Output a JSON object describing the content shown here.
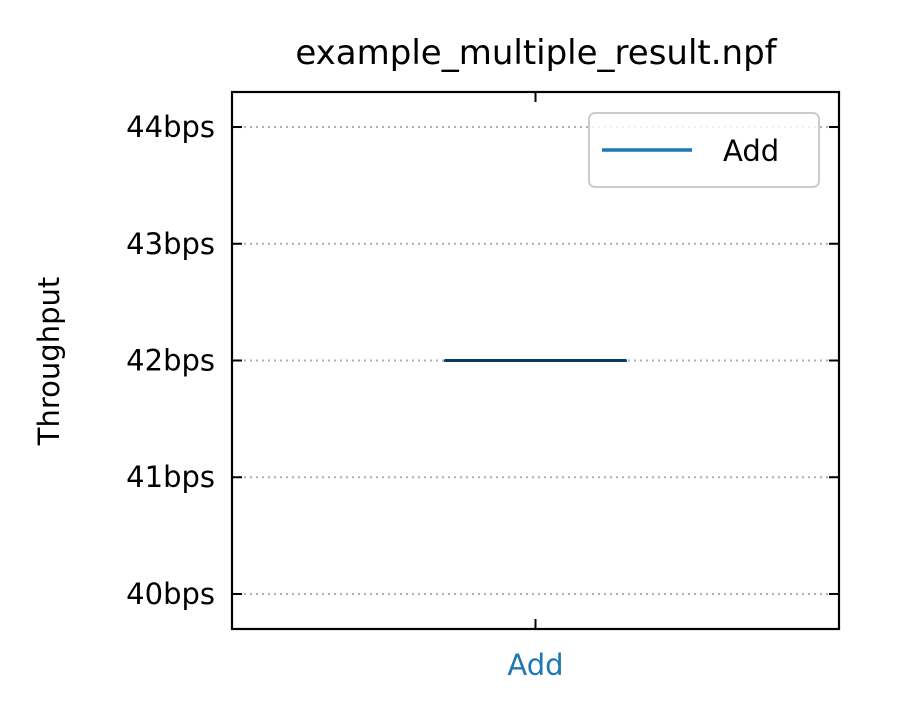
{
  "chart_data": {
    "type": "box",
    "title": "example_multiple_result.npf",
    "xlabel": "",
    "ylabel": "Throughput",
    "categories": [
      "Add"
    ],
    "series": [
      {
        "name": "Add",
        "color": "#1f77b4",
        "values": [
          42
        ],
        "box": {
          "min": 42,
          "q1": 42,
          "median": 42,
          "q3": 42,
          "max": 42
        }
      }
    ],
    "yticks": [
      40,
      41,
      42,
      43,
      44
    ],
    "ytick_labels": [
      "40bps",
      "41bps",
      "42bps",
      "43bps",
      "44bps"
    ],
    "ylim": [
      39.7,
      44.3
    ],
    "grid": "y-dotted",
    "legend": {
      "position": "top-right",
      "entries": [
        "Add"
      ]
    },
    "xtick_label_color": "#1f77b4",
    "median_color": "#0d3b5e"
  }
}
